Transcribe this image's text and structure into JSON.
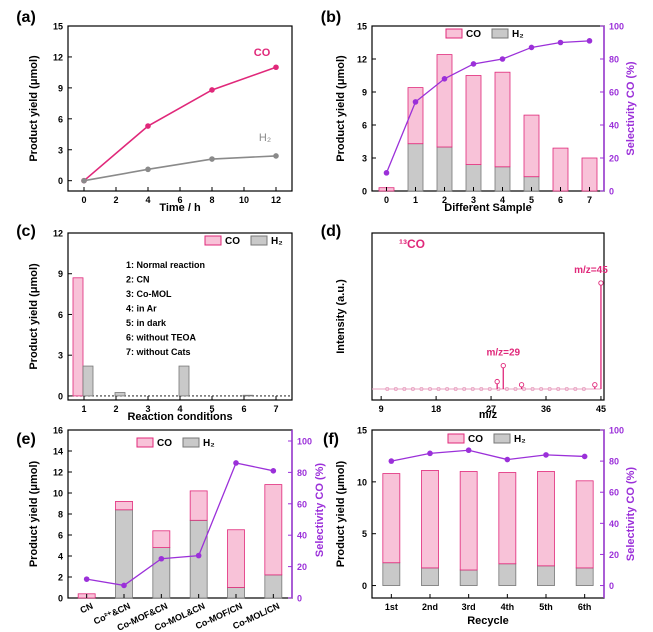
{
  "colors": {
    "co_fill": "#f8c2d8",
    "co_stroke": "#e0287a",
    "h2_fill": "#c9c9c9",
    "h2_stroke": "#777777",
    "purple": "#9b30d9",
    "pink_line": "#e0287a",
    "grey_line": "#8a8a8a",
    "ms_line": "#e8a0c0"
  },
  "chart_data": [
    {
      "panel": "a",
      "panel_label": "(a)",
      "type": "line",
      "xlabel": "Time / h",
      "ylabel": "Product yield (μmol)",
      "xlim": [
        -1,
        13
      ],
      "ylim": [
        -1,
        15
      ],
      "xticks": [
        "0",
        "2",
        "4",
        "6",
        "8",
        "10",
        "12"
      ],
      "yticks": [
        "0",
        "3",
        "6",
        "9",
        "12",
        "15"
      ],
      "series": [
        {
          "name": "CO",
          "label": "CO",
          "x": [
            0,
            4,
            8,
            12
          ],
          "values": [
            0,
            5.3,
            8.8,
            11.0
          ]
        },
        {
          "name": "H2",
          "label": "H₂",
          "x": [
            0,
            4,
            8,
            12
          ],
          "values": [
            0,
            1.1,
            2.1,
            2.4
          ]
        }
      ]
    },
    {
      "panel": "b",
      "panel_label": "(b)",
      "type": "bar",
      "xlabel": "Different Sample",
      "ylabel": "Product yield (μmol)",
      "ylabel_right": "Selectivity CO (%)",
      "categories": [
        "0",
        "1",
        "2",
        "3",
        "4",
        "5",
        "6",
        "7"
      ],
      "ylim": [
        0,
        15
      ],
      "yticks": [
        "0",
        "3",
        "6",
        "9",
        "12",
        "15"
      ],
      "ylim_right": [
        0,
        100
      ],
      "yticks_right": [
        "0",
        "20",
        "40",
        "60",
        "80",
        "100"
      ],
      "legend": [
        "CO",
        "H₂"
      ],
      "series": [
        {
          "name": "CO",
          "values": [
            0.3,
            5.1,
            8.4,
            8.1,
            8.6,
            5.6,
            3.9,
            3.0
          ]
        },
        {
          "name": "H2",
          "values": [
            0.0,
            4.3,
            4.0,
            2.4,
            2.2,
            1.3,
            0.0,
            0.0
          ]
        },
        {
          "name": "Selectivity",
          "axis": "right",
          "values": [
            11,
            54,
            68,
            77,
            80,
            87,
            90,
            91
          ]
        }
      ]
    },
    {
      "panel": "c",
      "panel_label": "(c)",
      "type": "bar",
      "xlabel": "Reaction conditions",
      "ylabel": "Product yield (μmol)",
      "categories": [
        "1",
        "2",
        "3",
        "4",
        "5",
        "6",
        "7"
      ],
      "ylim": [
        -0.3,
        12
      ],
      "yticks": [
        "0",
        "3",
        "6",
        "9",
        "12"
      ],
      "legend": [
        "CO",
        "H₂"
      ],
      "series": [
        {
          "name": "CO",
          "values": [
            8.7,
            0.0,
            0.0,
            0.0,
            0.0,
            0.0,
            0.0
          ]
        },
        {
          "name": "H2",
          "values": [
            2.2,
            0.25,
            0.0,
            2.2,
            0.0,
            0.05,
            0.0
          ]
        }
      ],
      "annotations": [
        "1: Normal reaction",
        "2: CN",
        "3: Co-MOL",
        "4: in Ar",
        "5: in dark",
        "6: without TEOA",
        "7: without Cats"
      ]
    },
    {
      "panel": "d",
      "panel_label": "(d)",
      "type": "line",
      "title": "¹³CO",
      "xlabel": "m/z",
      "ylabel": "Intensity (a.u.)",
      "xlim": [
        9,
        45
      ],
      "xticks": [
        "9",
        "18",
        "27",
        "36",
        "45"
      ],
      "peaks": [
        {
          "x": 28,
          "intensity": 0.07
        },
        {
          "x": 29,
          "intensity": 0.22,
          "label": "m/z=29"
        },
        {
          "x": 32,
          "intensity": 0.04
        },
        {
          "x": 44,
          "intensity": 0.04
        },
        {
          "x": 45,
          "intensity": 1.0,
          "label": "m/z=45"
        }
      ]
    },
    {
      "panel": "e",
      "panel_label": "(e)",
      "type": "bar",
      "ylabel": "Product yield (μmol)",
      "ylabel_right": "Selectivity CO (%)",
      "categories": [
        "CN",
        "Co²⁺&CN",
        "Co-MOF&CN",
        "Co-MOL&CN",
        "Co-MOF/CN",
        "Co-MOL/CN"
      ],
      "ylim": [
        0,
        16
      ],
      "yticks": [
        "0",
        "2",
        "4",
        "6",
        "8",
        "10",
        "12",
        "14",
        "16"
      ],
      "ylim_right": [
        0,
        107
      ],
      "yticks_right": [
        "0",
        "20",
        "40",
        "60",
        "80",
        "100"
      ],
      "legend": [
        "CO",
        "H₂"
      ],
      "series": [
        {
          "name": "CO",
          "values": [
            0.4,
            0.8,
            1.6,
            2.8,
            5.5,
            8.6
          ]
        },
        {
          "name": "H2",
          "values": [
            0.0,
            8.4,
            4.8,
            7.4,
            1.0,
            2.2
          ]
        },
        {
          "name": "Selectivity",
          "axis": "right",
          "values": [
            12,
            8,
            25,
            27,
            86,
            81
          ]
        }
      ]
    },
    {
      "panel": "f",
      "panel_label": "(f)",
      "type": "bar",
      "xlabel": "Recycle",
      "ylabel": "Product yield (μmol)",
      "ylabel_right": "Selectivity CO (%)",
      "categories": [
        "1st",
        "2nd",
        "3rd",
        "4th",
        "5th",
        "6th"
      ],
      "ylim": [
        -1.2,
        15
      ],
      "yticks": [
        "0",
        "5",
        "10",
        "15"
      ],
      "ylim_right": [
        -8,
        100
      ],
      "yticks_right": [
        "0",
        "20",
        "40",
        "60",
        "80",
        "100"
      ],
      "legend": [
        "CO",
        "H₂"
      ],
      "series": [
        {
          "name": "CO",
          "values": [
            8.6,
            9.4,
            9.5,
            8.8,
            9.1,
            8.4
          ]
        },
        {
          "name": "H2",
          "values": [
            2.2,
            1.7,
            1.5,
            2.1,
            1.9,
            1.7
          ]
        },
        {
          "name": "Selectivity",
          "axis": "right",
          "values": [
            80,
            85,
            87,
            81,
            84,
            83
          ]
        }
      ]
    }
  ]
}
